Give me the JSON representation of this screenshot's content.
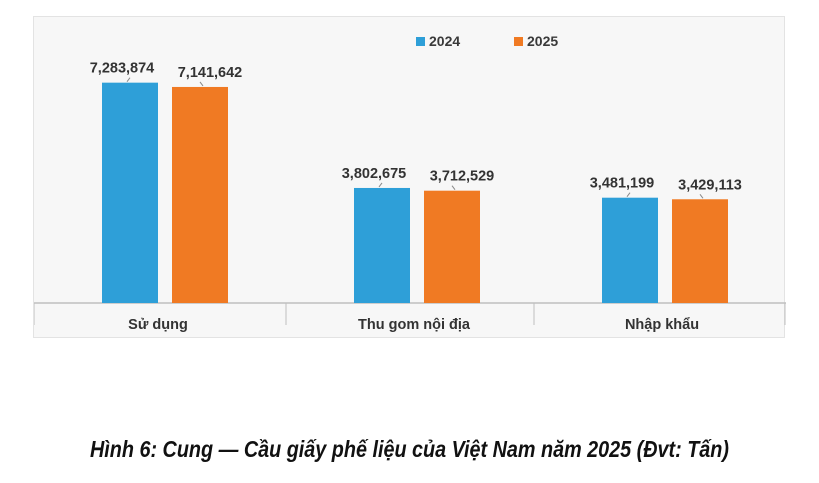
{
  "caption": "Hình 6: Cung — Cầu giấy phế liệu của Việt Nam năm 2025 (Đvt: Tấn)",
  "colors": {
    "2024": "#2e9fd8",
    "2025": "#f07a23",
    "axis": "#bfbfbf",
    "background": "#f7f7f7"
  },
  "chart_data": {
    "type": "bar",
    "title": "",
    "xlabel": "",
    "ylabel": "",
    "categories": [
      "Sử dụng",
      "Thu gom nội địa",
      "Nhập khẩu"
    ],
    "series": [
      {
        "name": "2024",
        "values": [
          7283874,
          3802675,
          3481199
        ],
        "labels": [
          "7,283,874",
          "3,802,675",
          "3,481,199"
        ]
      },
      {
        "name": "2025",
        "values": [
          7141642,
          3712529,
          3429113
        ],
        "labels": [
          "7,141,642",
          "3,712,529",
          "3,429,113"
        ]
      }
    ],
    "ylim": [
      0,
      8000000
    ],
    "grid": false,
    "legend": "top-right"
  }
}
